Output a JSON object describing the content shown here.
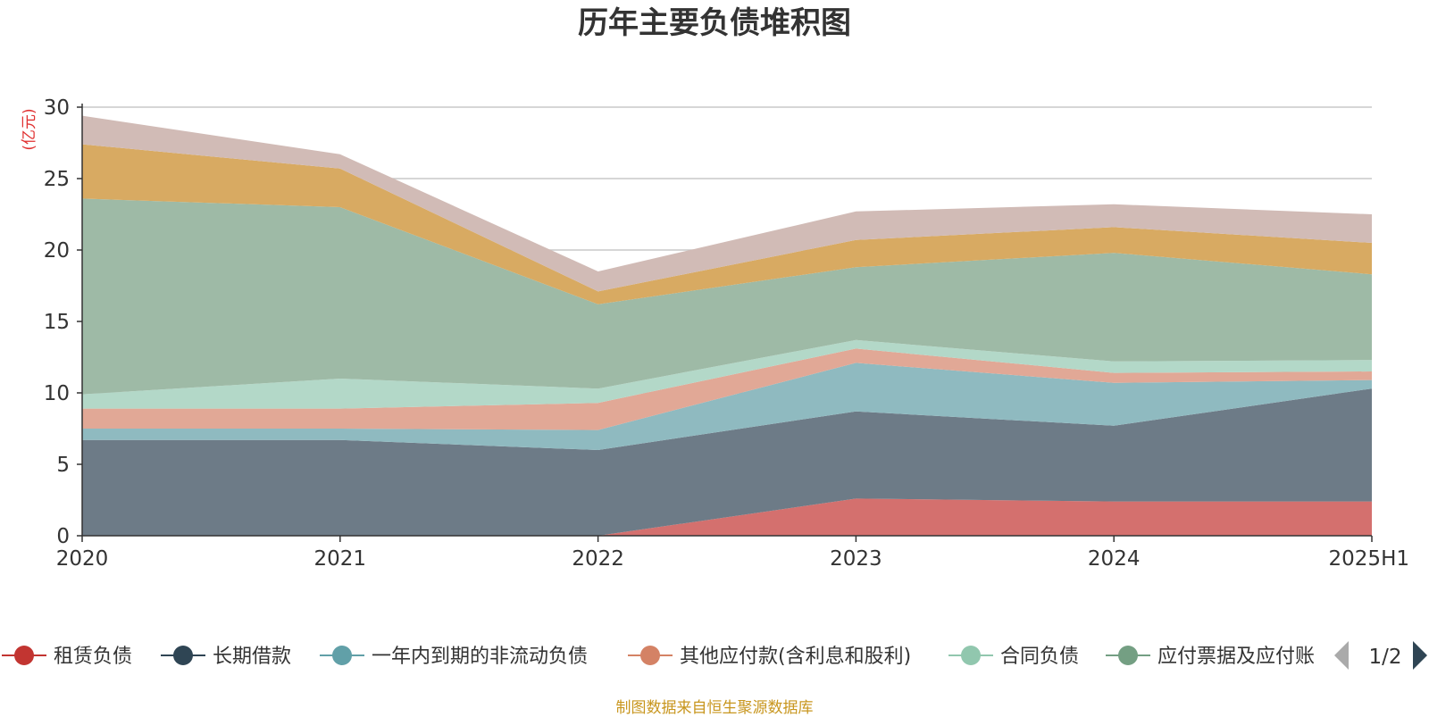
{
  "chart_data": {
    "type": "area",
    "stacked": true,
    "title": "历年主要负债堆积图",
    "ylabel": "(亿元)",
    "ylim": [
      0,
      30
    ],
    "yticks": [
      0,
      5,
      10,
      15,
      20,
      25,
      30
    ],
    "x": [
      "2020",
      "2021",
      "2022",
      "2023",
      "2024",
      "2025H1"
    ],
    "grid": true,
    "legend_position": "bottom",
    "series": [
      {
        "name": "租赁负债",
        "color": "#c23531",
        "fill": "#d4706e",
        "values": [
          0,
          0,
          0,
          2.6,
          2.4,
          2.4
        ]
      },
      {
        "name": "长期借款",
        "color": "#2f4554",
        "fill": "#6d7b87",
        "values": [
          6.7,
          6.7,
          6.0,
          6.1,
          5.3,
          7.9
        ]
      },
      {
        "name": "一年内到期的非流动负债",
        "color": "#61a0a8",
        "fill": "#8fbac0",
        "values": [
          0.8,
          0.8,
          1.4,
          3.4,
          3.0,
          0.6
        ]
      },
      {
        "name": "其他应付款(含利息和股利)",
        "color": "#d48265",
        "fill": "#e1a896",
        "values": [
          1.4,
          1.4,
          1.9,
          1.0,
          0.7,
          0.6
        ]
      },
      {
        "name": "合同负债",
        "color": "#91c7ae",
        "fill": "#b3d8c8",
        "values": [
          1.0,
          2.1,
          1.0,
          0.6,
          0.8,
          0.8
        ]
      },
      {
        "name": "应付票据及应付账款",
        "color": "#749f83",
        "fill": "#9ebaa6",
        "values": [
          13.7,
          12.0,
          5.9,
          5.1,
          7.6,
          6.0
        ]
      },
      {
        "name": "",
        "color": "#ca8622",
        "fill": "#d8aa62",
        "values": [
          3.8,
          2.7,
          0.9,
          1.9,
          1.8,
          2.2
        ]
      },
      {
        "name": "",
        "color": "#bda29a",
        "fill": "#d1bbb6",
        "values": [
          2.0,
          1.0,
          1.4,
          2.0,
          1.6,
          2.0
        ]
      }
    ]
  },
  "legend": {
    "items": [
      "租赁负债",
      "长期借款",
      "一年内到期的非流动负债",
      "其他应付款(含利息和股利)",
      "合同负债",
      "应付票据及应付账"
    ],
    "colors": [
      "#c23531",
      "#2f4554",
      "#61a0a8",
      "#d48265",
      "#91c7ae",
      "#749f83"
    ],
    "page": "1/2",
    "prev_icon": "triangle-left-icon",
    "next_icon": "triangle-right-icon"
  },
  "source_text": "制图数据来自恒生聚源数据库"
}
